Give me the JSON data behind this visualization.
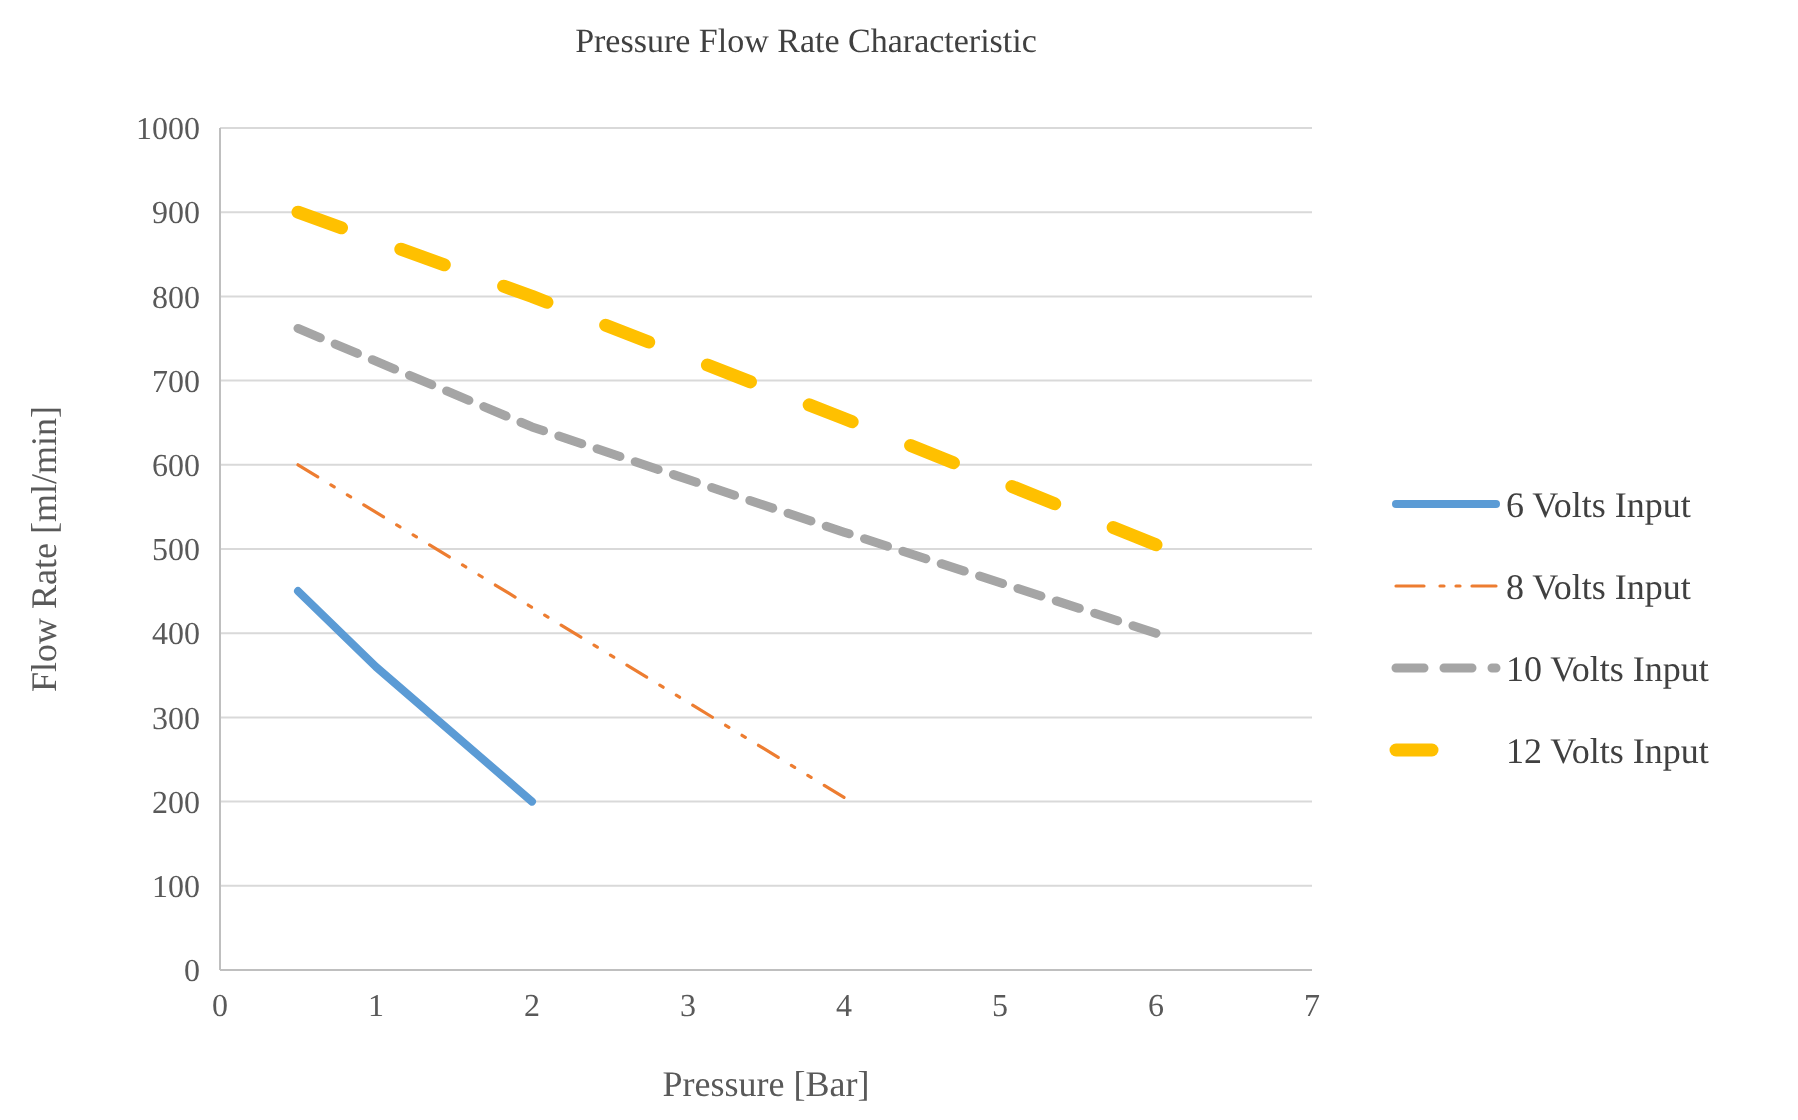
{
  "chart_data": {
    "type": "line",
    "title": "Pressure Flow Rate Characteristic",
    "xlabel": "Pressure [Bar]",
    "ylabel": "Flow Rate [ml/min]",
    "xlim": [
      0,
      7
    ],
    "xticks": [
      0,
      1,
      2,
      3,
      4,
      5,
      6,
      7
    ],
    "ylim": [
      0,
      1000
    ],
    "yticks": [
      0,
      100,
      200,
      300,
      400,
      500,
      600,
      700,
      800,
      900,
      1000
    ],
    "grid": "y",
    "legend": "right",
    "marker": "none",
    "series": [
      {
        "name": "6 Volts Input",
        "color": "#5b9bd5",
        "line_style": "solid",
        "x": [
          0.5,
          1,
          2
        ],
        "values": [
          450,
          360,
          200
        ]
      },
      {
        "name": "8 Volts Input",
        "color": "#ed7d31",
        "line_style": "dashed",
        "x": [
          0.5,
          4
        ],
        "values": [
          600,
          205
        ]
      },
      {
        "name": "10 Volts Input",
        "color": "#a5a5a5",
        "line_style": "dashed",
        "x": [
          0.5,
          2,
          4,
          6
        ],
        "values": [
          762,
          645,
          520,
          400
        ]
      },
      {
        "name": "12 Volts Input",
        "color": "#ffc000",
        "line_style": "dashed",
        "x": [
          0.5,
          2,
          4,
          6
        ],
        "values": [
          900,
          800,
          655,
          505
        ]
      }
    ]
  }
}
